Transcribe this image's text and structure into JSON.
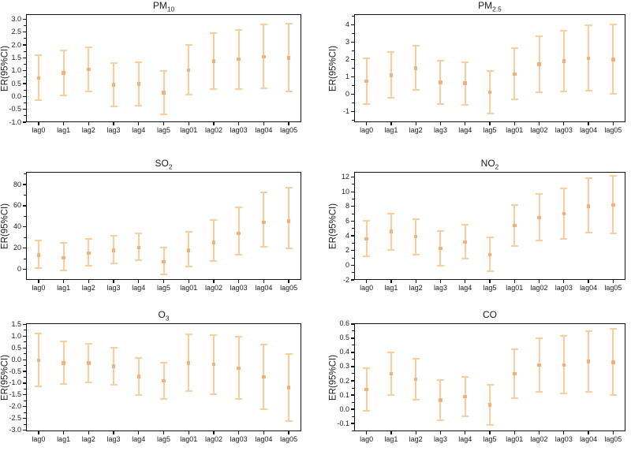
{
  "figure": {
    "colors": {
      "error_bar": "#FACD9F",
      "marker": "#F5AF7A",
      "axis": "#111111",
      "background": "#ffffff"
    },
    "ylabel": "ER(95%CI)",
    "categories": [
      "lag0",
      "lag1",
      "lag2",
      "lag3",
      "lag4",
      "lag5",
      "lag01",
      "lag02",
      "lag03",
      "lag04",
      "lag05"
    ]
  },
  "chart_data": [
    {
      "type": "errorbar",
      "id": "pm10",
      "title_main": "PM",
      "title_sub": "10",
      "ylabel": "ER(95%CI)",
      "categories": [
        "lag0",
        "lag1",
        "lag2",
        "lag3",
        "lag4",
        "lag5",
        "lag01",
        "lag02",
        "lag03",
        "lag04",
        "lag05"
      ],
      "ylim": [
        -1.0,
        3.2
      ],
      "yticks": [
        3.0,
        2.5,
        2.0,
        1.5,
        1.0,
        0.5,
        0.0,
        -0.5,
        -1.0
      ],
      "ytick_labels": [
        "3.0",
        "2.5",
        "2.0",
        "1.5",
        "1.0",
        "0.5",
        "0.0",
        "-0.5",
        "-1.0"
      ],
      "series": [
        {
          "name": "ER (95% CI)",
          "center": [
            0.72,
            0.92,
            1.05,
            0.45,
            0.48,
            0.15,
            1.02,
            1.37,
            1.45,
            1.55,
            1.5
          ],
          "low": [
            -0.13,
            0.05,
            0.2,
            -0.4,
            -0.35,
            -0.68,
            0.07,
            0.3,
            0.3,
            0.33,
            0.2
          ],
          "high": [
            1.6,
            1.8,
            1.92,
            1.3,
            1.33,
            1.0,
            2.0,
            2.45,
            2.6,
            2.8,
            2.83
          ]
        }
      ]
    },
    {
      "type": "errorbar",
      "id": "pm25",
      "title_main": "PM",
      "title_sub": "2.5",
      "ylabel": "ER(95%CI)",
      "categories": [
        "lag0",
        "lag1",
        "lag2",
        "lag3",
        "lag4",
        "lag5",
        "lag01",
        "lag02",
        "lag03",
        "lag04",
        "lag05"
      ],
      "ylim": [
        -1.6,
        4.6
      ],
      "yticks": [
        4,
        3,
        2,
        1,
        0,
        -1
      ],
      "ytick_labels": [
        "4",
        "3",
        "2",
        "1",
        "0",
        "-1"
      ],
      "series": [
        {
          "name": "ER (95% CI)",
          "center": [
            0.75,
            1.1,
            1.5,
            0.68,
            0.63,
            0.12,
            1.15,
            1.72,
            1.9,
            2.07,
            2.0
          ],
          "low": [
            -0.55,
            -0.2,
            0.25,
            -0.58,
            -0.6,
            -1.08,
            -0.3,
            0.12,
            0.15,
            0.22,
            0.02
          ],
          "high": [
            2.05,
            2.45,
            2.8,
            1.95,
            1.85,
            1.35,
            2.65,
            3.35,
            3.65,
            3.97,
            4.02
          ]
        }
      ]
    },
    {
      "type": "errorbar",
      "id": "so2",
      "title_main": "SO",
      "title_sub": "2",
      "ylabel": "ER(95%CI)",
      "categories": [
        "lag0",
        "lag1",
        "lag2",
        "lag3",
        "lag4",
        "lag5",
        "lag01",
        "lag02",
        "lag03",
        "lag04",
        "lag05"
      ],
      "ylim": [
        -10,
        92
      ],
      "yticks": [
        80,
        60,
        40,
        20,
        0
      ],
      "ytick_labels": [
        "80",
        "60",
        "40",
        "20",
        "0"
      ],
      "series": [
        {
          "name": "ER (95% CI)",
          "center": [
            13.5,
            11,
            15.5,
            18,
            20.5,
            7,
            18,
            25.5,
            34,
            44.5,
            45.5
          ],
          "low": [
            1,
            -1,
            3.5,
            5.5,
            8.5,
            -5,
            3,
            7.5,
            13.5,
            21,
            20
          ],
          "high": [
            27.5,
            25,
            29,
            31.5,
            34,
            20.5,
            35.5,
            46.5,
            58.5,
            73,
            77
          ]
        }
      ]
    },
    {
      "type": "errorbar",
      "id": "no2",
      "title_main": "NO",
      "title_sub": "2",
      "ylabel": "ER(95%CI)",
      "categories": [
        "lag0",
        "lag1",
        "lag2",
        "lag3",
        "lag4",
        "lag5",
        "lag01",
        "lag02",
        "lag03",
        "lag04",
        "lag05"
      ],
      "ylim": [
        -2,
        12.7
      ],
      "yticks": [
        12,
        10,
        8,
        6,
        4,
        2,
        0,
        -2
      ],
      "ytick_labels": [
        "12",
        "10",
        "8",
        "6",
        "4",
        "2",
        "0",
        "-2"
      ],
      "series": [
        {
          "name": "ER (95% CI)",
          "center": [
            3.6,
            4.6,
            3.9,
            2.3,
            3.15,
            1.45,
            5.4,
            6.5,
            7.0,
            8.05,
            8.2
          ],
          "low": [
            1.2,
            2.1,
            1.4,
            -0.05,
            0.85,
            -0.8,
            2.6,
            3.4,
            3.6,
            4.4,
            4.3
          ],
          "high": [
            6.1,
            7.0,
            6.3,
            4.7,
            5.5,
            3.8,
            8.2,
            9.7,
            10.5,
            11.8,
            12.2
          ]
        }
      ]
    },
    {
      "type": "errorbar",
      "id": "o3",
      "title_main": "O",
      "title_sub": "3",
      "ylabel": "ER(95%CI)",
      "categories": [
        "lag0",
        "lag1",
        "lag2",
        "lag3",
        "lag4",
        "lag5",
        "lag01",
        "lag02",
        "lag03",
        "lag04",
        "lag05"
      ],
      "ylim": [
        -3.05,
        1.55
      ],
      "yticks": [
        1.5,
        1.0,
        0.5,
        0.0,
        -0.5,
        -1.0,
        -1.5,
        -2.0,
        -2.5,
        -3.0
      ],
      "ytick_labels": [
        "1.5",
        "1.0",
        "0.5",
        "0.0",
        "-0.5",
        "-1.0",
        "-1.5",
        "-2.0",
        "-2.5",
        "-3.0"
      ],
      "series": [
        {
          "name": "ER (95% CI)",
          "center": [
            -0.02,
            -0.15,
            -0.15,
            -0.28,
            -0.72,
            -0.9,
            -0.15,
            -0.2,
            -0.37,
            -0.73,
            -1.18
          ],
          "low": [
            -1.13,
            -1.05,
            -0.97,
            -1.08,
            -1.5,
            -1.68,
            -1.35,
            -1.47,
            -1.67,
            -2.1,
            -2.6
          ],
          "high": [
            1.1,
            0.77,
            0.68,
            0.52,
            0.08,
            -0.12,
            1.07,
            1.05,
            0.97,
            0.65,
            0.25
          ]
        }
      ]
    },
    {
      "type": "errorbar",
      "id": "co",
      "title_main": "CO",
      "title_sub": "",
      "ylabel": "ER(95%CI)",
      "categories": [
        "lag0",
        "lag1",
        "lag2",
        "lag3",
        "lag4",
        "lag5",
        "lag01",
        "lag02",
        "lag03",
        "lag04",
        "lag05"
      ],
      "ylim": [
        -0.155,
        0.605
      ],
      "yticks": [
        0.6,
        0.5,
        0.4,
        0.3,
        0.2,
        0.1,
        0.0,
        -0.1
      ],
      "ytick_labels": [
        "0.6",
        "0.5",
        "0.4",
        "0.3",
        "0.2",
        "0.1",
        "0.0",
        "-0.1"
      ],
      "series": [
        {
          "name": "ER (95% CI)",
          "center": [
            0.14,
            0.25,
            0.21,
            0.065,
            0.09,
            0.03,
            0.25,
            0.31,
            0.31,
            0.335,
            0.33
          ],
          "low": [
            -0.01,
            0.1,
            0.065,
            -0.08,
            -0.05,
            -0.11,
            0.08,
            0.125,
            0.11,
            0.12,
            0.1
          ],
          "high": [
            0.29,
            0.4,
            0.355,
            0.205,
            0.23,
            0.17,
            0.42,
            0.5,
            0.515,
            0.55,
            0.565
          ]
        }
      ]
    }
  ]
}
